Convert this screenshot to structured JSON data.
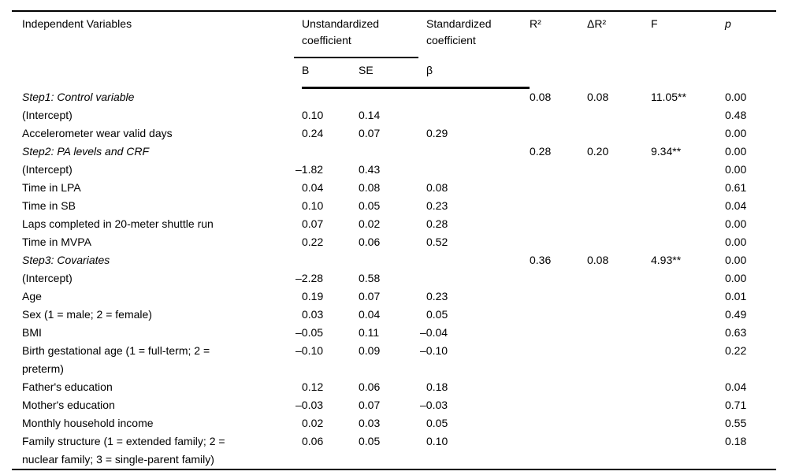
{
  "colors": {
    "background": "#ffffff",
    "text": "#000000",
    "rule": "#000000"
  },
  "table": {
    "header": {
      "independent_variables": "Independent Variables",
      "unstandardized": "Unstandardized\ncoefficient",
      "standardized": "Standardized\ncoefficient",
      "b": "B",
      "se": "SE",
      "beta": "β",
      "r2": "R²",
      "delta_r2": "ΔR²",
      "f": "F",
      "p": "p"
    },
    "rows": [
      {
        "label": "Step1: Control variable",
        "italic": true,
        "r2": "0.08",
        "dr2": "0.08",
        "f": "11.05**",
        "p": "0.00"
      },
      {
        "label": "(Intercept)",
        "b": "0.10",
        "se": "0.14",
        "p": "0.48"
      },
      {
        "label": "Accelerometer wear valid days",
        "b": "0.24",
        "se": "0.07",
        "beta": "0.29",
        "p": "0.00"
      },
      {
        "label": "Step2: PA levels and CRF",
        "italic": true,
        "r2": "0.28",
        "dr2": "0.20",
        "f": "9.34**",
        "p": "0.00"
      },
      {
        "label": "(Intercept)",
        "b": "–1.82",
        "se": "0.43",
        "p": "0.00"
      },
      {
        "label": "Time in LPA",
        "b": "0.04",
        "se": "0.08",
        "beta": "0.08",
        "p": "0.61"
      },
      {
        "label": "Time in SB",
        "b": "0.10",
        "se": "0.05",
        "beta": "0.23",
        "p": "0.04"
      },
      {
        "label": "Laps completed in 20-meter shuttle run",
        "b": "0.07",
        "se": "0.02",
        "beta": "0.28",
        "p": "0.00"
      },
      {
        "label": "Time in MVPA",
        "b": "0.22",
        "se": "0.06",
        "beta": "0.52",
        "p": "0.00"
      },
      {
        "label": "Step3: Covariates",
        "italic": true,
        "r2": "0.36",
        "dr2": "0.08",
        "f": "4.93**",
        "p": "0.00"
      },
      {
        "label": "(Intercept)",
        "b": "–2.28",
        "se": "0.58",
        "p": "0.00"
      },
      {
        "label": "Age",
        "b": "0.19",
        "se": "0.07",
        "beta": "0.23",
        "p": "0.01"
      },
      {
        "label": "Sex (1 = male; 2 = female)",
        "b": "0.03",
        "se": "0.04",
        "beta": "0.05",
        "p": "0.49"
      },
      {
        "label": "BMI",
        "b": "–0.05",
        "se": "0.11",
        "beta": "–0.04",
        "p": "0.63"
      },
      {
        "label": "Birth gestational age (1 = full-term; 2 =\npreterm)",
        "b": "–0.10",
        "se": "0.09",
        "beta": "–0.10",
        "p": "0.22"
      },
      {
        "label": "Father's education",
        "b": "0.12",
        "se": "0.06",
        "beta": "0.18",
        "p": "0.04"
      },
      {
        "label": "Mother's education",
        "b": "–0.03",
        "se": "0.07",
        "beta": "–0.03",
        "p": "0.71"
      },
      {
        "label": "Monthly household income",
        "b": "0.02",
        "se": "0.03",
        "beta": "0.05",
        "p": "0.55"
      },
      {
        "label": "Family structure (1 = extended family; 2 =\nnuclear family; 3 = single-parent family)",
        "b": "0.06",
        "se": "0.05",
        "beta": "0.10",
        "p": "0.18"
      }
    ]
  }
}
